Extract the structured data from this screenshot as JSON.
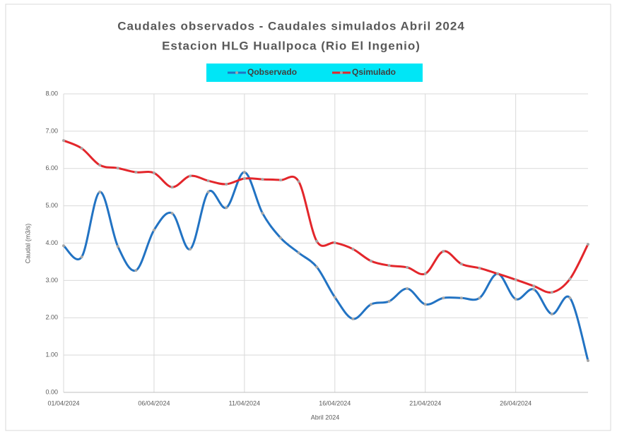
{
  "chart_data": {
    "type": "line",
    "title": "Caudales observados - Caudales simulados Abril 2024",
    "subtitle": "Estacion HLG Huallpoca (Rio El Ingenio)",
    "x_label": "Abril 2024",
    "y_label": "Caudal (m3/s)",
    "categories": [
      "01/04/2024",
      null,
      null,
      null,
      null,
      "06/04/2024",
      null,
      null,
      null,
      null,
      "11/04/2024",
      null,
      null,
      null,
      null,
      "16/04/2024",
      null,
      null,
      null,
      null,
      "21/04/2024",
      null,
      null,
      null,
      null,
      "26/04/2024",
      null,
      null,
      null,
      null
    ],
    "series": [
      {
        "name": "Qobservado",
        "color": "#2273c3",
        "values": [
          3.93,
          3.63,
          5.37,
          3.91,
          3.27,
          4.35,
          4.8,
          3.84,
          5.37,
          4.95,
          5.9,
          4.8,
          4.14,
          3.74,
          3.36,
          2.55,
          1.97,
          2.36,
          2.44,
          2.78,
          2.36,
          2.53,
          2.53,
          2.53,
          3.18,
          2.5,
          2.76,
          2.1,
          2.53,
          0.85
        ]
      },
      {
        "name": "Qsimulado",
        "color": "#e3262b",
        "values": [
          6.75,
          6.54,
          6.09,
          6.01,
          5.9,
          5.88,
          5.5,
          5.8,
          5.67,
          5.58,
          5.73,
          5.71,
          5.69,
          5.65,
          4.05,
          4.01,
          3.84,
          3.52,
          3.4,
          3.35,
          3.18,
          3.78,
          3.44,
          3.33,
          3.18,
          3.02,
          2.85,
          2.68,
          3.04,
          3.97
        ]
      }
    ],
    "ylim": [
      0,
      8
    ],
    "yticks": [
      {
        "value": 0,
        "label": "0.00"
      },
      {
        "value": 1,
        "label": "1.00"
      },
      {
        "value": 2,
        "label": "2.00"
      },
      {
        "value": 3,
        "label": "3.00"
      },
      {
        "value": 4,
        "label": "4.00"
      },
      {
        "value": 5,
        "label": "5.00"
      },
      {
        "value": 6,
        "label": "6.00"
      },
      {
        "value": 7,
        "label": "7.00"
      },
      {
        "value": 8,
        "label": "8.00"
      }
    ],
    "grid": true,
    "legend": "top"
  }
}
